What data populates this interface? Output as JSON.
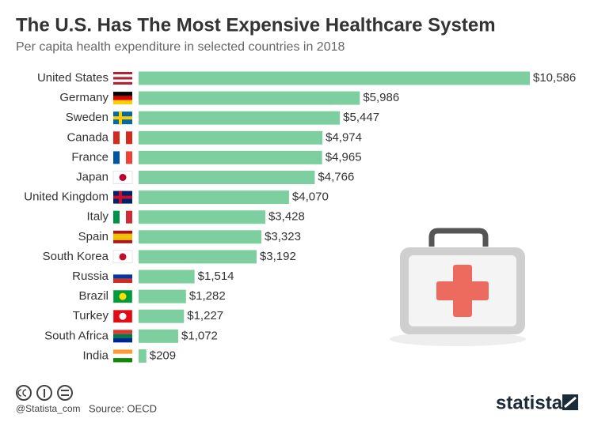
{
  "chart_data": {
    "type": "bar",
    "title": "The U.S. Has The Most Expensive Healthcare System",
    "subtitle": "Per capita health expenditure in selected countries in 2018",
    "categories": [
      "United States",
      "Germany",
      "Sweden",
      "Canada",
      "France",
      "Japan",
      "United Kingdom",
      "Italy",
      "Spain",
      "South Korea",
      "Russia",
      "Brazil",
      "Turkey",
      "South Africa",
      "India"
    ],
    "values": [
      10586,
      5986,
      5447,
      4974,
      4965,
      4766,
      4070,
      3428,
      3323,
      3192,
      1514,
      1282,
      1227,
      1072,
      209
    ],
    "value_labels": [
      "$10,586",
      "$5,986",
      "$5,447",
      "$4,974",
      "$4,965",
      "$4,766",
      "$4,070",
      "$3,428",
      "$3,323",
      "$3,192",
      "$1,514",
      "$1,282",
      "$1,227",
      "$1,072",
      "$209"
    ],
    "color": "#7dcfa0",
    "source": "Source: OECD",
    "handle": "@Statista_com",
    "brand": "statista"
  }
}
